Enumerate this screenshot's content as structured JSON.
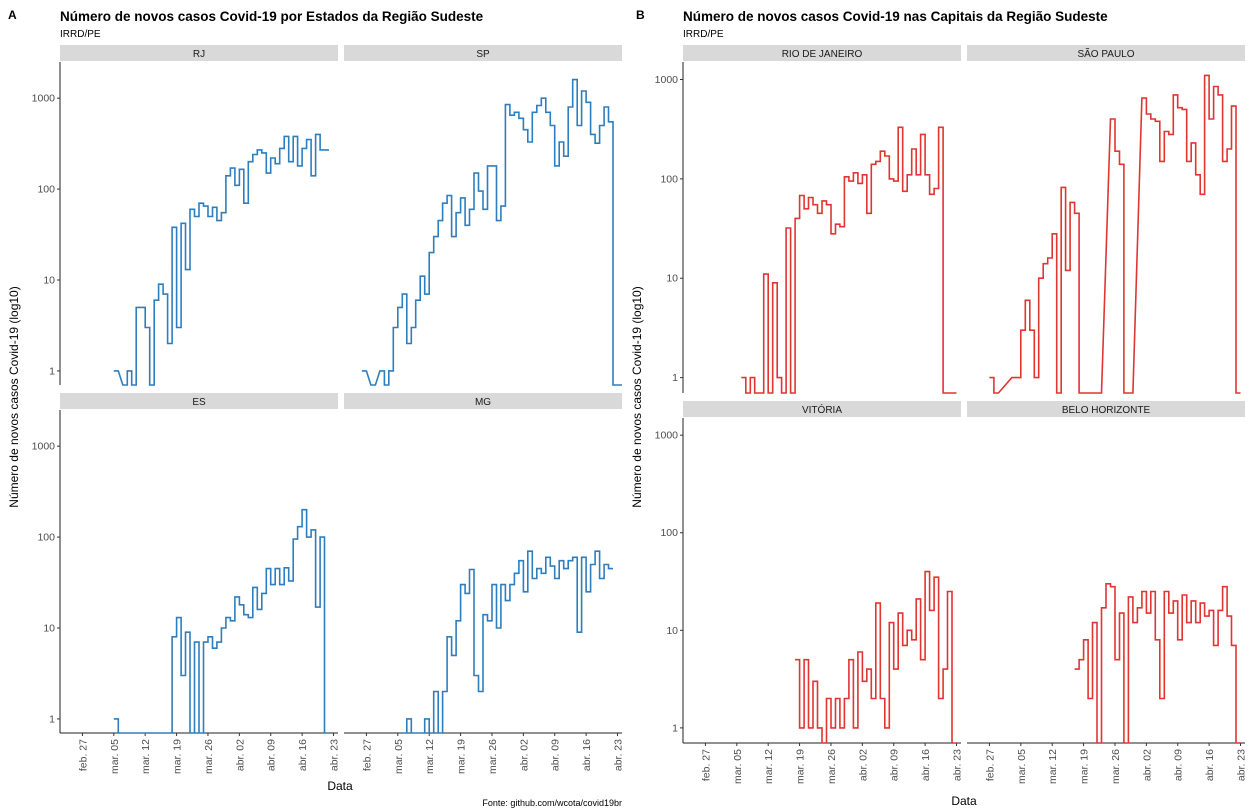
{
  "panels": [
    {
      "letter": "A",
      "title": "Número de novos casos Covid-19 por Estados da Região Sudeste",
      "subtitle": "IRRD/PE",
      "ylabel": "Número de novos casos Covid-19 (log10)",
      "xlabel": "Data",
      "caption": "Fonte: github.com/wcota/covid19br",
      "color": "#2e7ebf"
    },
    {
      "letter": "B",
      "title": "Número de novos casos Covid-19 nas Capitais da Região Sudeste",
      "subtitle": "IRRD/PE",
      "ylabel": "Número de novos casos Covid-19 (log10)",
      "xlabel": "Data",
      "caption": "",
      "color": "#e03530"
    }
  ],
  "chart_data": [
    {
      "type": "line",
      "step": true,
      "scale_y": "log10",
      "ylim": [
        0.7,
        2500
      ],
      "yticks": [
        1,
        10,
        100,
        1000
      ],
      "xlim": [
        "2020-02-22",
        "2020-04-24"
      ],
      "xticks": [
        "feb. 27",
        "mar. 05",
        "mar. 12",
        "mar. 19",
        "mar. 26",
        "abr. 02",
        "abr. 09",
        "abr. 16",
        "abr. 23"
      ],
      "xtick_dates": [
        "2020-02-27",
        "2020-03-05",
        "2020-03-12",
        "2020-03-19",
        "2020-03-26",
        "2020-04-02",
        "2020-04-09",
        "2020-04-16",
        "2020-04-23"
      ],
      "grid": false,
      "series": [
        {
          "name": "RJ",
          "x": [
            "2020-03-05",
            "2020-03-07",
            "2020-03-08",
            "2020-03-09",
            "2020-03-10",
            "2020-03-11",
            "2020-03-12",
            "2020-03-13",
            "2020-03-14",
            "2020-03-15",
            "2020-03-16",
            "2020-03-17",
            "2020-03-18",
            "2020-03-19",
            "2020-03-20",
            "2020-03-21",
            "2020-03-22",
            "2020-03-23",
            "2020-03-24",
            "2020-03-25",
            "2020-03-26",
            "2020-03-27",
            "2020-03-28",
            "2020-03-29",
            "2020-03-30",
            "2020-03-31",
            "2020-04-01",
            "2020-04-02",
            "2020-04-03",
            "2020-04-04",
            "2020-04-05",
            "2020-04-06",
            "2020-04-07",
            "2020-04-08",
            "2020-04-09",
            "2020-04-10",
            "2020-04-11",
            "2020-04-12",
            "2020-04-13",
            "2020-04-14",
            "2020-04-15",
            "2020-04-16",
            "2020-04-17",
            "2020-04-18",
            "2020-04-19",
            "2020-04-20",
            "2020-04-21"
          ],
          "y": [
            1,
            0.7,
            1,
            0.7,
            5,
            5,
            3,
            0.7,
            6,
            9,
            7,
            2,
            38,
            3,
            42,
            13,
            60,
            50,
            70,
            65,
            50,
            63,
            45,
            55,
            140,
            170,
            110,
            165,
            70,
            200,
            240,
            270,
            250,
            150,
            220,
            190,
            280,
            380,
            200,
            380,
            180,
            280,
            350,
            140,
            400,
            270,
            270
          ]
        },
        {
          "name": "SP",
          "x": [
            "2020-02-26",
            "2020-02-28",
            "2020-03-01",
            "2020-03-02",
            "2020-03-03",
            "2020-03-04",
            "2020-03-05",
            "2020-03-06",
            "2020-03-07",
            "2020-03-08",
            "2020-03-09",
            "2020-03-10",
            "2020-03-11",
            "2020-03-12",
            "2020-03-13",
            "2020-03-14",
            "2020-03-15",
            "2020-03-16",
            "2020-03-17",
            "2020-03-18",
            "2020-03-19",
            "2020-03-20",
            "2020-03-21",
            "2020-03-22",
            "2020-03-23",
            "2020-03-24",
            "2020-03-25",
            "2020-03-26",
            "2020-03-27",
            "2020-03-28",
            "2020-03-29",
            "2020-03-30",
            "2020-03-31",
            "2020-04-01",
            "2020-04-02",
            "2020-04-03",
            "2020-04-04",
            "2020-04-05",
            "2020-04-06",
            "2020-04-07",
            "2020-04-08",
            "2020-04-09",
            "2020-04-10",
            "2020-04-11",
            "2020-04-12",
            "2020-04-13",
            "2020-04-14",
            "2020-04-15",
            "2020-04-16",
            "2020-04-17",
            "2020-04-18",
            "2020-04-19",
            "2020-04-20",
            "2020-04-21",
            "2020-04-22",
            "2020-04-23"
          ],
          "y": [
            1,
            0.7,
            1,
            0.7,
            1,
            3,
            5,
            7,
            2,
            3,
            6,
            11,
            7,
            20,
            30,
            45,
            70,
            85,
            30,
            55,
            80,
            40,
            60,
            150,
            95,
            60,
            180,
            180,
            45,
            65,
            850,
            650,
            700,
            600,
            450,
            330,
            700,
            830,
            1000,
            700,
            500,
            180,
            330,
            230,
            800,
            1600,
            500,
            1200,
            900,
            400,
            320,
            500,
            800,
            550,
            0.7,
            0.7
          ]
        },
        {
          "name": "ES",
          "x": [
            "2020-03-05",
            "2020-03-06",
            "2020-03-07",
            "2020-03-17",
            "2020-03-18",
            "2020-03-19",
            "2020-03-20",
            "2020-03-21",
            "2020-03-22",
            "2020-03-23",
            "2020-03-24",
            "2020-03-25",
            "2020-03-26",
            "2020-03-27",
            "2020-03-28",
            "2020-03-29",
            "2020-03-30",
            "2020-03-31",
            "2020-04-01",
            "2020-04-02",
            "2020-04-03",
            "2020-04-04",
            "2020-04-05",
            "2020-04-06",
            "2020-04-07",
            "2020-04-08",
            "2020-04-09",
            "2020-04-10",
            "2020-04-11",
            "2020-04-12",
            "2020-04-13",
            "2020-04-14",
            "2020-04-15",
            "2020-04-16",
            "2020-04-17",
            "2020-04-18",
            "2020-04-19",
            "2020-04-20",
            "2020-04-21"
          ],
          "y": [
            1,
            0.7,
            0.7,
            0.7,
            8,
            13,
            3,
            9,
            0.7,
            7,
            0.7,
            7,
            8,
            6,
            7,
            10,
            13,
            12,
            22,
            18,
            14,
            13,
            28,
            16,
            24,
            45,
            30,
            45,
            30,
            46,
            33,
            95,
            130,
            200,
            100,
            120,
            17,
            100,
            0.7
          ]
        },
        {
          "name": "MG",
          "x": [
            "2020-03-06",
            "2020-03-07",
            "2020-03-08",
            "2020-03-10",
            "2020-03-11",
            "2020-03-12",
            "2020-03-13",
            "2020-03-14",
            "2020-03-15",
            "2020-03-16",
            "2020-03-17",
            "2020-03-18",
            "2020-03-19",
            "2020-03-20",
            "2020-03-21",
            "2020-03-22",
            "2020-03-23",
            "2020-03-24",
            "2020-03-25",
            "2020-03-26",
            "2020-03-27",
            "2020-03-28",
            "2020-03-29",
            "2020-03-30",
            "2020-03-31",
            "2020-04-01",
            "2020-04-02",
            "2020-04-03",
            "2020-04-04",
            "2020-04-05",
            "2020-04-06",
            "2020-04-07",
            "2020-04-08",
            "2020-04-09",
            "2020-04-10",
            "2020-04-11",
            "2020-04-12",
            "2020-04-13",
            "2020-04-14",
            "2020-04-15",
            "2020-04-16",
            "2020-04-17",
            "2020-04-18",
            "2020-04-19",
            "2020-04-20",
            "2020-04-21"
          ],
          "y": [
            0.7,
            1,
            0.7,
            0.7,
            1,
            0.7,
            2,
            0.7,
            2,
            8,
            5,
            12,
            30,
            24,
            44,
            3,
            2,
            14,
            12,
            30,
            10,
            30,
            20,
            30,
            40,
            55,
            25,
            70,
            35,
            45,
            40,
            60,
            48,
            35,
            55,
            45,
            55,
            60,
            9,
            60,
            25,
            50,
            70,
            35,
            50,
            45
          ]
        }
      ]
    },
    {
      "type": "line",
      "step": true,
      "scale_y": "log10",
      "ylim": [
        0.7,
        1500
      ],
      "yticks": [
        1,
        10,
        100,
        1000
      ],
      "xlim": [
        "2020-02-22",
        "2020-04-24"
      ],
      "xticks": [
        "feb. 27",
        "mar. 05",
        "mar. 12",
        "mar. 19",
        "mar. 26",
        "abr. 02",
        "abr. 09",
        "abr. 16",
        "abr. 23"
      ],
      "xtick_dates": [
        "2020-02-27",
        "2020-03-05",
        "2020-03-12",
        "2020-03-19",
        "2020-03-26",
        "2020-04-02",
        "2020-04-09",
        "2020-04-16",
        "2020-04-23"
      ],
      "grid": false,
      "series": [
        {
          "name": "RIO DE JANEIRO",
          "x": [
            "2020-03-06",
            "2020-03-07",
            "2020-03-08",
            "2020-03-09",
            "2020-03-10",
            "2020-03-11",
            "2020-03-12",
            "2020-03-13",
            "2020-03-14",
            "2020-03-15",
            "2020-03-16",
            "2020-03-17",
            "2020-03-18",
            "2020-03-19",
            "2020-03-20",
            "2020-03-21",
            "2020-03-22",
            "2020-03-23",
            "2020-03-24",
            "2020-03-25",
            "2020-03-26",
            "2020-03-27",
            "2020-03-28",
            "2020-03-29",
            "2020-03-30",
            "2020-03-31",
            "2020-04-01",
            "2020-04-02",
            "2020-04-03",
            "2020-04-04",
            "2020-04-05",
            "2020-04-06",
            "2020-04-07",
            "2020-04-08",
            "2020-04-09",
            "2020-04-10",
            "2020-04-11",
            "2020-04-12",
            "2020-04-13",
            "2020-04-14",
            "2020-04-15",
            "2020-04-16",
            "2020-04-17",
            "2020-04-18",
            "2020-04-19",
            "2020-04-20",
            "2020-04-21",
            "2020-04-22"
          ],
          "y": [
            1,
            0.7,
            1,
            0.7,
            0.7,
            11,
            0.7,
            9,
            1,
            0.7,
            32,
            0.7,
            40,
            68,
            50,
            65,
            55,
            45,
            60,
            55,
            28,
            35,
            33,
            105,
            95,
            115,
            90,
            110,
            45,
            140,
            150,
            190,
            170,
            100,
            95,
            330,
            75,
            110,
            200,
            110,
            280,
            110,
            70,
            80,
            330,
            0.7,
            0.7,
            0.7
          ]
        },
        {
          "name": "SÃO PAULO",
          "x": [
            "2020-02-27",
            "2020-02-28",
            "2020-03-03",
            "2020-03-04",
            "2020-03-05",
            "2020-03-06",
            "2020-03-07",
            "2020-03-08",
            "2020-03-09",
            "2020-03-10",
            "2020-03-11",
            "2020-03-12",
            "2020-03-13",
            "2020-03-14",
            "2020-03-15",
            "2020-03-16",
            "2020-03-17",
            "2020-03-18",
            "2020-03-19",
            "2020-03-20",
            "2020-03-21",
            "2020-03-22",
            "2020-03-25",
            "2020-03-26",
            "2020-03-27",
            "2020-03-28",
            "2020-03-29",
            "2020-04-01",
            "2020-04-02",
            "2020-04-03",
            "2020-04-04",
            "2020-04-05",
            "2020-04-06",
            "2020-04-07",
            "2020-04-08",
            "2020-04-09",
            "2020-04-10",
            "2020-04-11",
            "2020-04-12",
            "2020-04-13",
            "2020-04-14",
            "2020-04-15",
            "2020-04-16",
            "2020-04-17",
            "2020-04-18",
            "2020-04-19",
            "2020-04-20",
            "2020-04-21",
            "2020-04-22"
          ],
          "y": [
            1,
            0.7,
            1,
            1,
            3,
            6,
            3,
            1,
            10,
            14,
            16,
            28,
            0.7,
            82,
            12,
            58,
            45,
            0.7,
            0.7,
            0.7,
            0.7,
            0.7,
            400,
            190,
            140,
            0.7,
            0.7,
            650,
            450,
            400,
            380,
            150,
            300,
            280,
            700,
            520,
            500,
            150,
            230,
            110,
            70,
            1100,
            400,
            850,
            700,
            150,
            200,
            540,
            0.7
          ]
        },
        {
          "name": "VITÓRIA",
          "x": [
            "2020-03-18",
            "2020-03-19",
            "2020-03-20",
            "2020-03-21",
            "2020-03-22",
            "2020-03-23",
            "2020-03-24",
            "2020-03-25",
            "2020-03-26",
            "2020-03-27",
            "2020-03-28",
            "2020-03-29",
            "2020-03-30",
            "2020-03-31",
            "2020-04-01",
            "2020-04-02",
            "2020-04-03",
            "2020-04-04",
            "2020-04-05",
            "2020-04-06",
            "2020-04-07",
            "2020-04-08",
            "2020-04-09",
            "2020-04-10",
            "2020-04-11",
            "2020-04-12",
            "2020-04-13",
            "2020-04-14",
            "2020-04-15",
            "2020-04-16",
            "2020-04-17",
            "2020-04-18",
            "2020-04-19",
            "2020-04-20",
            "2020-04-21",
            "2020-04-22"
          ],
          "y": [
            5,
            1,
            5,
            1,
            3,
            1,
            0.7,
            2,
            1,
            2,
            1,
            2,
            5,
            1,
            6,
            3,
            4,
            2,
            19,
            2,
            1,
            12,
            4,
            15,
            7,
            10,
            8,
            21,
            5,
            40,
            16,
            35,
            2,
            4,
            25,
            0.7
          ]
        },
        {
          "name": "BELO HORIZONTE",
          "x": [
            "2020-03-17",
            "2020-03-18",
            "2020-03-19",
            "2020-03-20",
            "2020-03-21",
            "2020-03-22",
            "2020-03-23",
            "2020-03-24",
            "2020-03-25",
            "2020-03-26",
            "2020-03-27",
            "2020-03-28",
            "2020-03-29",
            "2020-03-30",
            "2020-03-31",
            "2020-04-01",
            "2020-04-02",
            "2020-04-03",
            "2020-04-04",
            "2020-04-05",
            "2020-04-06",
            "2020-04-07",
            "2020-04-08",
            "2020-04-09",
            "2020-04-10",
            "2020-04-11",
            "2020-04-12",
            "2020-04-13",
            "2020-04-14",
            "2020-04-15",
            "2020-04-16",
            "2020-04-17",
            "2020-04-18",
            "2020-04-19",
            "2020-04-20",
            "2020-04-21",
            "2020-04-22"
          ],
          "y": [
            4,
            5,
            8,
            2,
            12,
            0.7,
            17,
            30,
            28,
            5,
            15,
            0.7,
            22,
            12,
            17,
            25,
            15,
            25,
            8,
            2,
            25,
            15,
            20,
            8,
            23,
            12,
            20,
            12,
            19,
            14,
            16,
            7,
            16,
            28,
            14,
            7,
            0.7
          ]
        }
      ]
    }
  ]
}
